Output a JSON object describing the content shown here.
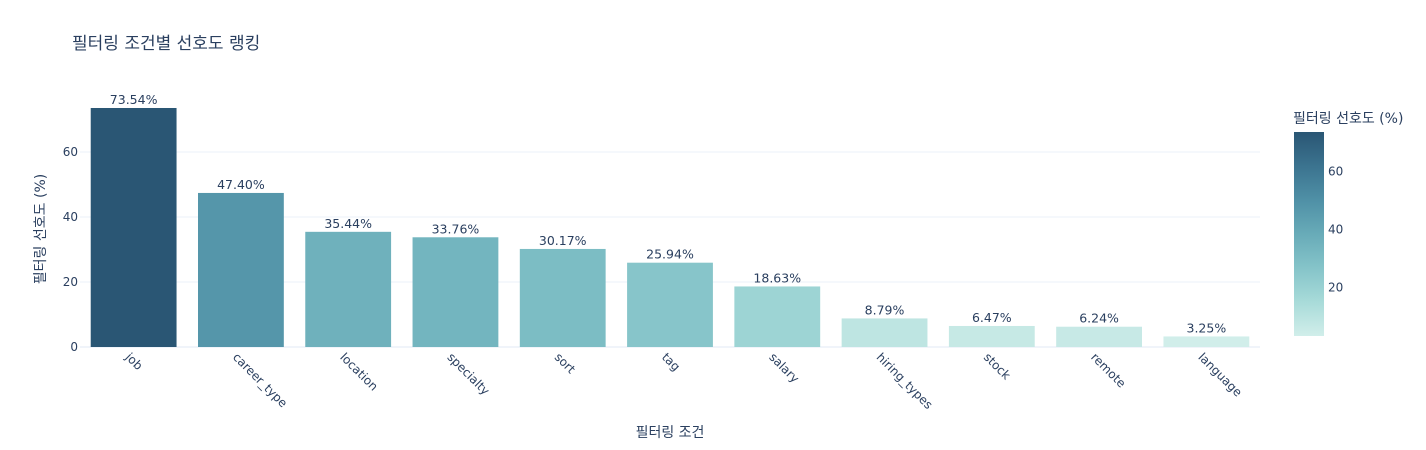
{
  "chart_data": {
    "type": "bar",
    "title": "필터링 조건별 선호도 랭킹",
    "xlabel": "필터링 조건",
    "ylabel": "필터링 선호도 (%)",
    "categories": [
      "job",
      "career_type",
      "location",
      "specialty",
      "sort",
      "tag",
      "salary",
      "hiring_types",
      "stock",
      "remote",
      "language"
    ],
    "values": [
      73.54,
      47.4,
      35.44,
      33.76,
      30.17,
      25.94,
      18.63,
      8.79,
      6.47,
      6.24,
      3.25
    ],
    "data_labels": [
      "73.54%",
      "47.40%",
      "35.44%",
      "33.76%",
      "30.17%",
      "25.94%",
      "18.63%",
      "8.79%",
      "6.47%",
      "6.24%",
      "3.25%"
    ],
    "ylim": [
      0,
      76
    ],
    "yticks": [
      0,
      20,
      40,
      60
    ],
    "grid": true,
    "colorbar": {
      "title": "필터링 선호도 (%)",
      "ticks": [
        20,
        40,
        60
      ],
      "range": [
        3.25,
        73.54
      ],
      "colors": [
        "#d1eeea",
        "#a8dbd9",
        "#85c4c9",
        "#68abb8",
        "#4f90a6",
        "#3b738f",
        "#2a5674"
      ]
    }
  }
}
